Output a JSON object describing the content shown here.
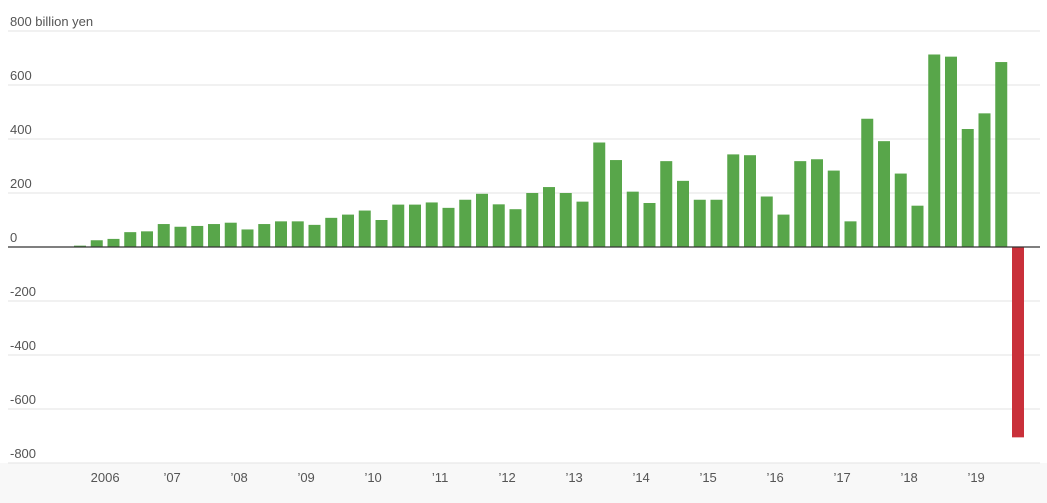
{
  "chart_data": {
    "type": "bar",
    "categories": [
      null,
      "2006",
      null,
      null,
      null,
      "’07",
      null,
      null,
      null,
      "’08",
      null,
      null,
      null,
      "’09",
      null,
      null,
      null,
      "’10",
      null,
      null,
      null,
      "’11",
      null,
      null,
      null,
      "’12",
      null,
      null,
      null,
      "’13",
      null,
      null,
      null,
      "’14",
      null,
      null,
      null,
      "’15",
      null,
      null,
      null,
      "’16",
      null,
      null,
      null,
      "’17",
      null,
      null,
      null,
      "’18",
      null,
      null,
      null,
      "’19",
      null,
      null,
      null
    ],
    "values": [
      5,
      25,
      30,
      55,
      58,
      85,
      75,
      78,
      85,
      90,
      65,
      85,
      95,
      95,
      82,
      108,
      120,
      135,
      100,
      157,
      157,
      165,
      145,
      175,
      197,
      158,
      140,
      200,
      222,
      200,
      168,
      387,
      322,
      205,
      163,
      318,
      245,
      175,
      175,
      343,
      340,
      187,
      120,
      318,
      325,
      283,
      95,
      475,
      392,
      272,
      153,
      713,
      705,
      437,
      495,
      685,
      -705
    ],
    "color": "#58a64a",
    "negative_color": "#c9303a",
    "ylim": [
      -800,
      800
    ],
    "yticks": [
      -800,
      -600,
      -400,
      -200,
      0,
      200,
      400,
      600,
      {
        "value": 800,
        "label": "800 billion yen"
      }
    ],
    "grid": true
  }
}
